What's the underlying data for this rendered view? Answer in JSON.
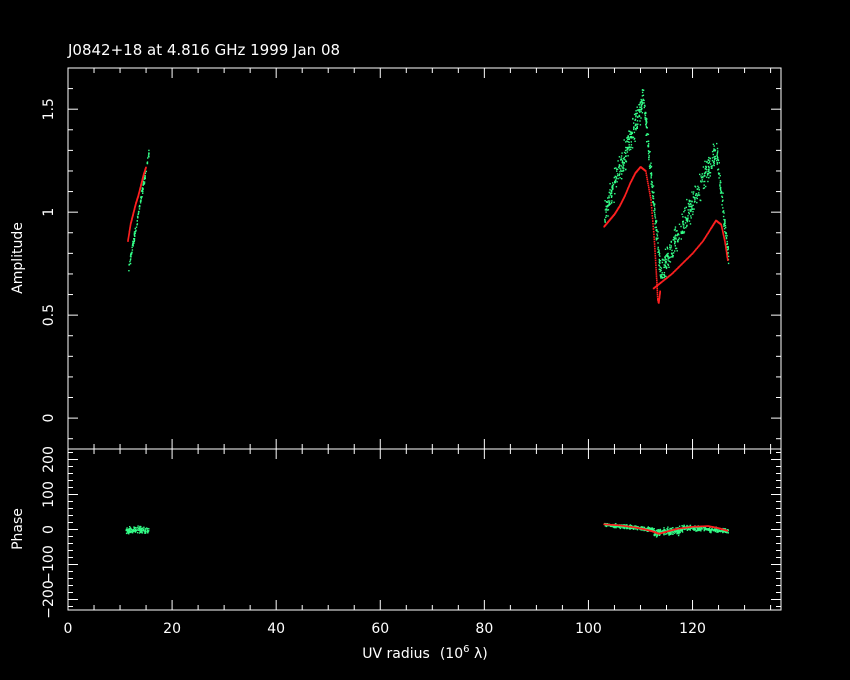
{
  "chart_data": {
    "type": "scatter",
    "title": "J0842+18 at 4.816 GHz 1999 Jan 08",
    "xlabel": "UV radius",
    "xlabel_unit_base": "(10",
    "xlabel_unit_exp": "6",
    "xlabel_unit_tail": " λ)",
    "xlim": [
      0,
      137
    ],
    "xticks": [
      "0",
      "20",
      "40",
      "60",
      "80",
      "100",
      "120"
    ],
    "colors": {
      "data": "#33ff88",
      "model": "#ff2020",
      "axes": "#ffffff"
    },
    "panels": [
      {
        "name": "amplitude",
        "ylabel": "Amplitude",
        "ylim": [
          -0.15,
          1.7
        ],
        "yticks": [
          "0",
          "0.5",
          "1",
          "1.5"
        ],
        "model_segments": [
          [
            [
              11.5,
              0.86
            ],
            [
              12.0,
              0.94
            ],
            [
              12.5,
              0.99
            ],
            [
              13.0,
              1.04
            ],
            [
              13.5,
              1.08
            ],
            [
              14.0,
              1.13
            ],
            [
              14.5,
              1.18
            ],
            [
              15.0,
              1.22
            ]
          ],
          [
            [
              103.0,
              0.93
            ],
            [
              104.0,
              0.96
            ],
            [
              105.0,
              0.99
            ],
            [
              106.0,
              1.03
            ],
            [
              107.0,
              1.08
            ],
            [
              108.0,
              1.14
            ],
            [
              109.0,
              1.19
            ],
            [
              110.0,
              1.22
            ],
            [
              111.0,
              1.2
            ],
            [
              112.0,
              1.06
            ],
            [
              112.6,
              0.88
            ],
            [
              113.0,
              0.72
            ],
            [
              113.3,
              0.58
            ],
            [
              113.5,
              0.56
            ],
            [
              113.8,
              0.62
            ]
          ],
          [
            [
              112.5,
              0.63
            ],
            [
              114.0,
              0.66
            ],
            [
              116.0,
              0.7
            ],
            [
              118.0,
              0.75
            ],
            [
              120.0,
              0.8
            ],
            [
              122.0,
              0.86
            ],
            [
              123.5,
              0.92
            ],
            [
              124.5,
              0.96
            ],
            [
              125.5,
              0.94
            ],
            [
              126.2,
              0.86
            ],
            [
              126.8,
              0.76
            ]
          ]
        ],
        "data_bands": [
          {
            "x0": 11.5,
            "x1": 15.5,
            "y0": 0.72,
            "y1": 1.3,
            "spread": 0.03,
            "n": 120
          },
          {
            "x0": 103.0,
            "x1": 110.5,
            "y0": 1.0,
            "y1": 1.55,
            "spread": 0.1,
            "n": 260
          },
          {
            "x0": 110.5,
            "x1": 113.8,
            "y0": 1.55,
            "y1": 0.7,
            "spread": 0.08,
            "n": 140
          },
          {
            "x0": 113.8,
            "x1": 124.5,
            "y0": 0.7,
            "y1": 1.3,
            "spread": 0.1,
            "n": 300
          },
          {
            "x0": 124.5,
            "x1": 126.8,
            "y0": 1.3,
            "y1": 0.78,
            "spread": 0.08,
            "n": 90
          }
        ]
      },
      {
        "name": "phase",
        "ylabel": "Phase",
        "ylim": [
          -230,
          230
        ],
        "yticks": [
          "−200",
          "−100",
          "0",
          "100",
          "200"
        ],
        "model_segments": [
          [
            [
              103.0,
              15
            ],
            [
              106.0,
              12
            ],
            [
              109.0,
              6
            ],
            [
              111.0,
              0
            ],
            [
              112.5,
              -6
            ],
            [
              113.5,
              -12
            ],
            [
              115.0,
              -6
            ],
            [
              117.0,
              2
            ],
            [
              120.0,
              8
            ],
            [
              123.0,
              10
            ],
            [
              125.0,
              4
            ],
            [
              126.8,
              -4
            ]
          ]
        ],
        "data_bands": [
          {
            "x0": 11.0,
            "x1": 15.5,
            "y0": 0,
            "y1": 0,
            "spread": 14,
            "n": 120
          },
          {
            "x0": 103.0,
            "x1": 112.5,
            "y0": 15,
            "y1": 2,
            "spread": 9,
            "n": 260
          },
          {
            "x0": 112.5,
            "x1": 118.0,
            "y0": -8,
            "y1": 0,
            "spread": 16,
            "n": 180
          },
          {
            "x0": 118.0,
            "x1": 126.8,
            "y0": 8,
            "y1": -2,
            "spread": 10,
            "n": 200
          }
        ]
      }
    ]
  }
}
